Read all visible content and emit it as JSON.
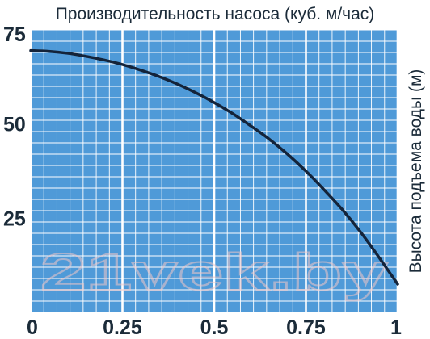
{
  "chart_data": {
    "type": "line",
    "title": "Производительность насоса (куб. м/час)",
    "xlabel": "",
    "ylabel": "Высота подъема воды (м)",
    "x_ticks": [
      "0",
      "0.25",
      "0.5",
      "0.75",
      "1"
    ],
    "y_ticks": [
      "25",
      "50",
      "75"
    ],
    "xlim": [
      0,
      1
    ],
    "ylim": [
      0,
      75
    ],
    "grid": true,
    "background_color": "#4f9ad8",
    "grid_color": "#ffffff",
    "line_color": "#14243a",
    "series": [
      {
        "x": [
          0,
          0.05,
          0.1,
          0.15,
          0.2,
          0.25,
          0.3,
          0.35,
          0.4,
          0.45,
          0.5,
          0.55,
          0.6,
          0.65,
          0.7,
          0.75,
          0.8,
          0.85,
          0.9,
          0.95,
          1.0
        ],
        "values": [
          69.5,
          69.3,
          68.8,
          68.0,
          67.0,
          65.8,
          64.3,
          62.6,
          60.6,
          58.3,
          55.7,
          52.8,
          49.5,
          46.0,
          42.0,
          37.5,
          32.5,
          27.2,
          21.2,
          14.5,
          7.5
        ]
      }
    ]
  },
  "watermark": "21vek.by"
}
